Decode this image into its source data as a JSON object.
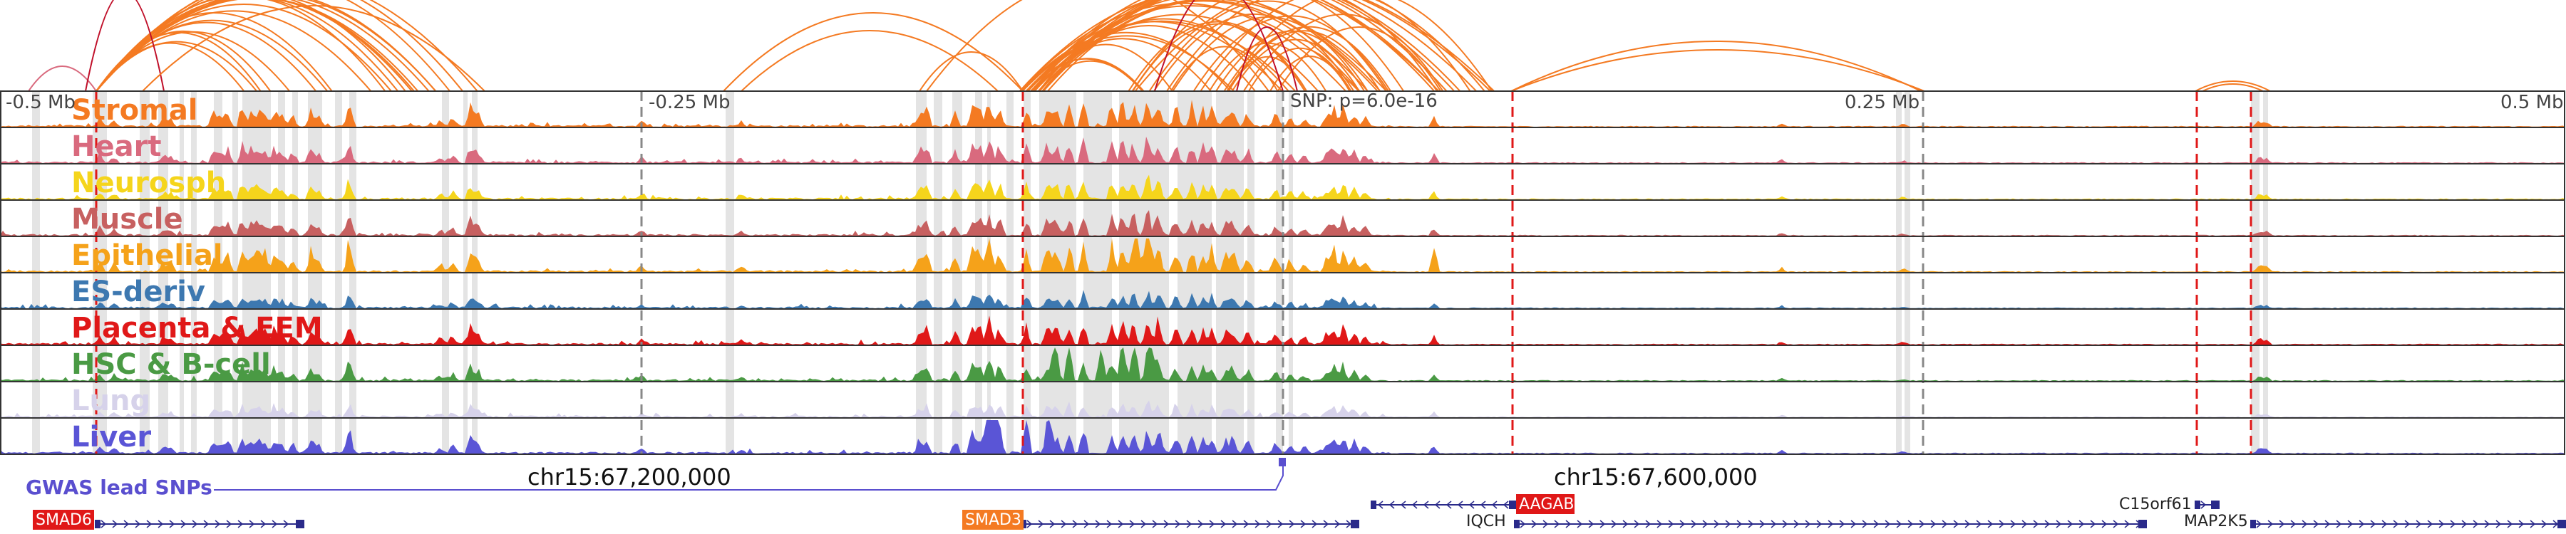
{
  "axis": {
    "ticks": [
      {
        "label": "-0.5 Mb",
        "value": -0.5
      },
      {
        "label": "-0.25 Mb",
        "value": -0.25
      },
      {
        "label": "0.25 Mb",
        "value": 0.25
      },
      {
        "label": "0.5 Mb",
        "value": 0.5
      }
    ],
    "range_mb": [
      -0.5,
      0.5
    ]
  },
  "snp_label": "SNP: p=6.0e-16",
  "tracks": [
    {
      "name": "Stromal",
      "color": "#f47a22"
    },
    {
      "name": "Heart",
      "color": "#d96a7e"
    },
    {
      "name": "Neurosph",
      "color": "#f5d51c"
    },
    {
      "name": "Muscle",
      "color": "#c76060"
    },
    {
      "name": "Epithelial",
      "color": "#f5a21a"
    },
    {
      "name": "ES-deriv",
      "color": "#3d78b0"
    },
    {
      "name": "Placenta & EEM",
      "color": "#e01818"
    },
    {
      "name": "HSC & B-cell",
      "color": "#4a9a44"
    },
    {
      "name": "Lung",
      "color": "#d6d2ea"
    },
    {
      "name": "Liver",
      "color": "#5a55d6"
    }
  ],
  "gwas": {
    "label": "GWAS lead SNPs",
    "color": "#5a4fcf"
  },
  "coordinates": [
    {
      "label": "chr15:67,200,000"
    },
    {
      "label": "chr15:67,600,000"
    }
  ],
  "genes": [
    {
      "name": "SMAD6",
      "highlight": true,
      "color": "#e01818",
      "strand": "+"
    },
    {
      "name": "SMAD3",
      "highlight": true,
      "color": "#f47a22",
      "strand": "+"
    },
    {
      "name": "AAGAB",
      "highlight": true,
      "color": "#e01818",
      "strand": "-"
    },
    {
      "name": "IQCH",
      "highlight": false,
      "color": "#222222",
      "strand": "+"
    },
    {
      "name": "C15orf61",
      "highlight": false,
      "color": "#222222",
      "strand": "+"
    },
    {
      "name": "MAP2K5",
      "highlight": false,
      "color": "#222222",
      "strand": "+"
    }
  ],
  "colors": {
    "arc": "#f47a22",
    "arc_dark": "#c0102a",
    "dashed_marker": "#e01818",
    "highlight_band": "#e4e4e4",
    "gene_model": "#2a2a8a"
  }
}
